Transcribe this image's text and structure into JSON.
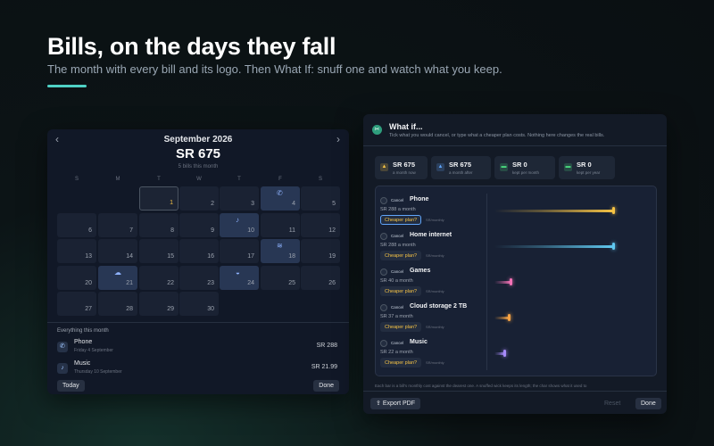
{
  "hero": {
    "title": "Bills, on the days they fall",
    "subtitle": "The month with every bill and its logo. Then What If: snuff one and watch what you keep."
  },
  "calendar": {
    "month": "September 2026",
    "total": "SR 675",
    "count": "5 bills this month",
    "weekdays": [
      "S",
      "M",
      "T",
      "W",
      "T",
      "F",
      "S"
    ],
    "days": [
      {
        "n": "1",
        "today": true
      },
      {
        "n": "2"
      },
      {
        "n": "3"
      },
      {
        "n": "4",
        "icon": "✆"
      },
      {
        "n": "5"
      },
      {
        "n": "6"
      },
      {
        "n": "7"
      },
      {
        "n": "8"
      },
      {
        "n": "9"
      },
      {
        "n": "10",
        "icon": "♪"
      },
      {
        "n": "11"
      },
      {
        "n": "12"
      },
      {
        "n": "13"
      },
      {
        "n": "14"
      },
      {
        "n": "15"
      },
      {
        "n": "16"
      },
      {
        "n": "17"
      },
      {
        "n": "18",
        "icon": "≋"
      },
      {
        "n": "19"
      },
      {
        "n": "20"
      },
      {
        "n": "21",
        "icon": "☁"
      },
      {
        "n": "22"
      },
      {
        "n": "23"
      },
      {
        "n": "24",
        "icon": "◒"
      },
      {
        "n": "25"
      },
      {
        "n": "26"
      },
      {
        "n": "27"
      },
      {
        "n": "28"
      },
      {
        "n": "29"
      },
      {
        "n": "30"
      }
    ],
    "section_label": "Everything this month",
    "bills": [
      {
        "icon": "✆",
        "name": "Phone",
        "date": "Friday 4 September",
        "amount": "SR 288"
      },
      {
        "icon": "♪",
        "name": "Music",
        "date": "Thursday 10 September",
        "amount": "SR 21.99"
      }
    ],
    "today_label": "Today",
    "done_label": "Done"
  },
  "whatif": {
    "title": "What if...",
    "description": "Tick what you would cancel, or type what a cheaper plan costs. Nothing here changes the real bills.",
    "stats": [
      {
        "value": "SR 675",
        "label": "a month now",
        "icon": "flame-icon",
        "glyph": "▲",
        "color": "#f6c344"
      },
      {
        "value": "SR 675",
        "label": "a month after",
        "icon": "flame-icon",
        "glyph": "▲",
        "color": "#60a5fa"
      },
      {
        "value": "SR 0",
        "label": "kept per month",
        "icon": "wallet-icon",
        "glyph": "▬",
        "color": "#4ade80"
      },
      {
        "value": "SR 0",
        "label": "kept per year",
        "icon": "wallet-icon",
        "glyph": "▬",
        "color": "#4ade80"
      }
    ],
    "cancel_label": "Cancel",
    "cheaper_label": "Cheaper plan?",
    "unit_label": "SR/monthly",
    "items": [
      {
        "name": "Phone",
        "amount": "SR 288 a month",
        "monthly": 288,
        "color": "#f6c344"
      },
      {
        "name": "Home internet",
        "amount": "SR 288 a month",
        "monthly": 288,
        "color": "#60c9f0"
      },
      {
        "name": "Games",
        "amount": "SR 40 a month",
        "monthly": 40,
        "color": "#f472b6"
      },
      {
        "name": "Cloud storage 2 TB",
        "amount": "SR 37 a month",
        "monthly": 37,
        "color": "#f6a344"
      },
      {
        "name": "Music",
        "amount": "SR 22 a month",
        "monthly": 22,
        "color": "#a78bfa"
      }
    ],
    "footnote": "Each bar is a bill's monthly cost against the dearest one. A snuffed wick keeps its length; the char shows what it used to",
    "export_label": "Export PDF",
    "reset_label": "Reset",
    "done_label": "Done"
  }
}
